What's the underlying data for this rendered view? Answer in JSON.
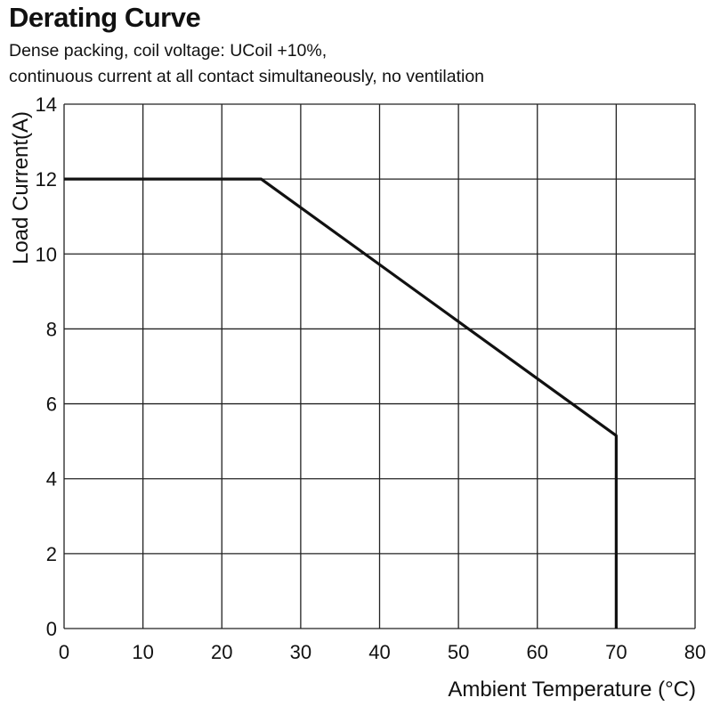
{
  "title": "Derating Curve",
  "subtitle_lines": [
    "Dense packing, coil voltage: UCoil +10%,",
    "continuous current at all contact simultaneously, no ventilation"
  ],
  "chart_data": {
    "type": "line",
    "title": "Derating Curve",
    "xlabel": "Ambient Temperature (°C)",
    "ylabel": "Load Current(A)",
    "xlim": [
      0,
      80
    ],
    "ylim": [
      0,
      14
    ],
    "xticks": [
      0,
      10,
      20,
      30,
      40,
      50,
      60,
      70,
      80
    ],
    "yticks": [
      0,
      2,
      4,
      6,
      8,
      10,
      12,
      14
    ],
    "grid": true,
    "series": [
      {
        "x": [
          0,
          25,
          70,
          70
        ],
        "y": [
          12,
          12,
          5.15,
          0
        ]
      }
    ],
    "colors": {
      "line": "#111111",
      "grid": "#222222"
    }
  }
}
